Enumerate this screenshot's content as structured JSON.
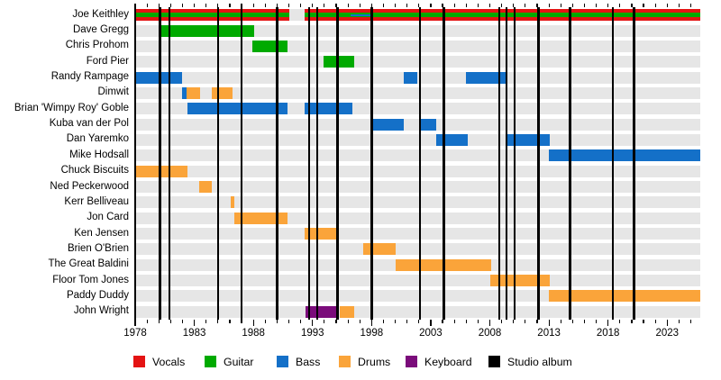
{
  "chart_data": {
    "type": "timeline",
    "title": "",
    "x_axis": {
      "start": 1978.0,
      "end": 2025.8,
      "tick_years": [
        1978,
        1983,
        1988,
        1993,
        1998,
        2003,
        2008,
        2013,
        2018,
        2023
      ],
      "minor_tick_interval": 1
    },
    "role_colors": {
      "vocals": "#e41313",
      "guitar": "#00aa00",
      "bass": "#1470c8",
      "drums": "#faa43a",
      "keyboard": "#7b0c7b",
      "album": "#000000"
    },
    "row_band_color": "#e6e6e6",
    "legend": [
      {
        "label": "Vocals",
        "role": "vocals"
      },
      {
        "label": "Guitar",
        "role": "guitar"
      },
      {
        "label": "Bass",
        "role": "bass"
      },
      {
        "label": "Drums",
        "role": "drums"
      },
      {
        "label": "Keyboard",
        "role": "keyboard"
      },
      {
        "label": "Studio album",
        "role": "album"
      }
    ],
    "album_release_years": [
      1980.1,
      1980.9,
      1985.0,
      1987.0,
      1990.0,
      1992.7,
      1993.4,
      1995.1,
      1998.0,
      2002.1,
      2004.1,
      2008.8,
      2009.4,
      2010.1,
      2012.1,
      2014.8,
      2018.4,
      2020.2
    ],
    "members": [
      {
        "name": "Joe Keithley",
        "segments": [
          {
            "start": 1978.0,
            "end": 1991.0,
            "roles": [
              "vocals",
              "guitar"
            ]
          },
          {
            "start": 1992.3,
            "end": 1996.2,
            "roles": [
              "vocals",
              "guitar"
            ]
          },
          {
            "start": 1996.2,
            "end": 1998.0,
            "roles": [
              "vocals",
              "guitar",
              "bass"
            ]
          },
          {
            "start": 1998.0,
            "end": 2025.8,
            "roles": [
              "vocals",
              "guitar"
            ]
          }
        ]
      },
      {
        "name": "Dave Gregg",
        "segments": [
          {
            "start": 1980.0,
            "end": 1988.1,
            "roles": [
              "guitar"
            ]
          }
        ]
      },
      {
        "name": "Chris Prohom",
        "segments": [
          {
            "start": 1987.9,
            "end": 1990.9,
            "roles": [
              "guitar"
            ]
          }
        ]
      },
      {
        "name": "Ford Pier",
        "segments": [
          {
            "start": 1993.9,
            "end": 1996.5,
            "roles": [
              "guitar"
            ]
          }
        ]
      },
      {
        "name": "Randy Rampage",
        "segments": [
          {
            "start": 1978.0,
            "end": 1982.0,
            "roles": [
              "bass"
            ]
          },
          {
            "start": 2000.7,
            "end": 2001.9,
            "roles": [
              "bass"
            ]
          },
          {
            "start": 2006.0,
            "end": 2009.4,
            "roles": [
              "bass"
            ]
          }
        ]
      },
      {
        "name": "Dimwit",
        "segments": [
          {
            "start": 1982.0,
            "end": 1982.35,
            "roles": [
              "bass"
            ]
          },
          {
            "start": 1982.35,
            "end": 1983.5,
            "roles": [
              "drums"
            ]
          },
          {
            "start": 1984.5,
            "end": 1986.2,
            "roles": [
              "drums"
            ]
          }
        ]
      },
      {
        "name": "Brian 'Wimpy Roy' Goble",
        "segments": [
          {
            "start": 1982.4,
            "end": 1990.9,
            "roles": [
              "bass"
            ]
          },
          {
            "start": 1992.3,
            "end": 1996.4,
            "roles": [
              "bass"
            ]
          }
        ]
      },
      {
        "name": "Kuba van der Pol",
        "segments": [
          {
            "start": 1998.0,
            "end": 2000.7,
            "roles": [
              "bass"
            ]
          },
          {
            "start": 2002.0,
            "end": 2003.5,
            "roles": [
              "bass"
            ]
          }
        ]
      },
      {
        "name": "Dan Yaremko",
        "segments": [
          {
            "start": 2003.5,
            "end": 2006.1,
            "roles": [
              "bass"
            ]
          },
          {
            "start": 2009.5,
            "end": 2013.1,
            "roles": [
              "bass"
            ]
          }
        ]
      },
      {
        "name": "Mike Hodsall",
        "segments": [
          {
            "start": 2013.0,
            "end": 2025.8,
            "roles": [
              "bass"
            ]
          }
        ]
      },
      {
        "name": "Chuck Biscuits",
        "segments": [
          {
            "start": 1978.0,
            "end": 1982.4,
            "roles": [
              "drums"
            ]
          }
        ]
      },
      {
        "name": "Ned Peckerwood",
        "segments": [
          {
            "start": 1983.4,
            "end": 1984.5,
            "roles": [
              "drums"
            ]
          }
        ]
      },
      {
        "name": "Kerr Belliveau",
        "segments": [
          {
            "start": 1986.1,
            "end": 1986.4,
            "roles": [
              "drums"
            ]
          }
        ]
      },
      {
        "name": "Jon Card",
        "segments": [
          {
            "start": 1986.4,
            "end": 1990.9,
            "roles": [
              "drums"
            ]
          }
        ]
      },
      {
        "name": "Ken Jensen",
        "segments": [
          {
            "start": 1992.3,
            "end": 1995.1,
            "roles": [
              "drums"
            ]
          }
        ]
      },
      {
        "name": "Brien O'Brien",
        "segments": [
          {
            "start": 1997.3,
            "end": 2000.0,
            "roles": [
              "drums"
            ]
          }
        ]
      },
      {
        "name": "The Great Baldini",
        "segments": [
          {
            "start": 2000.0,
            "end": 2008.1,
            "roles": [
              "drums"
            ]
          }
        ]
      },
      {
        "name": "Floor Tom Jones",
        "segments": [
          {
            "start": 2008.0,
            "end": 2013.1,
            "roles": [
              "drums"
            ]
          }
        ]
      },
      {
        "name": "Paddy Duddy",
        "segments": [
          {
            "start": 2013.0,
            "end": 2025.8,
            "roles": [
              "drums"
            ]
          }
        ]
      },
      {
        "name": "John Wright",
        "segments": [
          {
            "start": 1992.4,
            "end": 1995.2,
            "roles": [
              "keyboard"
            ]
          },
          {
            "start": 1995.3,
            "end": 1996.5,
            "roles": [
              "drums"
            ]
          }
        ]
      }
    ]
  }
}
